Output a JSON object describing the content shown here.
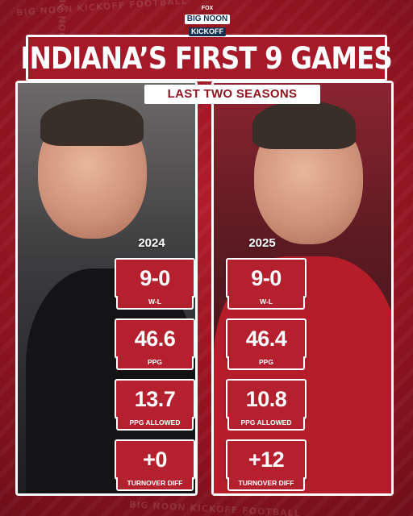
{
  "brand": {
    "line1": "FOX",
    "line2": "BIG NOON",
    "line3": "KICKOFF"
  },
  "title": "INDIANA’S FIRST 9 GAMES",
  "subtitle": "LAST TWO SEASONS",
  "seasons": [
    {
      "year": "2024",
      "stats": [
        {
          "value": "9-0",
          "label": "W-L"
        },
        {
          "value": "46.6",
          "label": "PPG"
        },
        {
          "value": "13.7",
          "label": "PPG ALLOWED"
        },
        {
          "value": "+0",
          "label": "TURNOVER DIFF"
        }
      ]
    },
    {
      "year": "2025",
      "stats": [
        {
          "value": "9-0",
          "label": "W-L"
        },
        {
          "value": "46.4",
          "label": "PPG"
        },
        {
          "value": "10.8",
          "label": "PPG ALLOWED"
        },
        {
          "value": "+12",
          "label": "TURNOVER DIFF"
        }
      ]
    }
  ],
  "background_text": "BIG NOON KICKOFF FOOTBALL",
  "colors": {
    "crimson": "#a51928",
    "white": "#ffffff",
    "navy": "#13304f"
  }
}
